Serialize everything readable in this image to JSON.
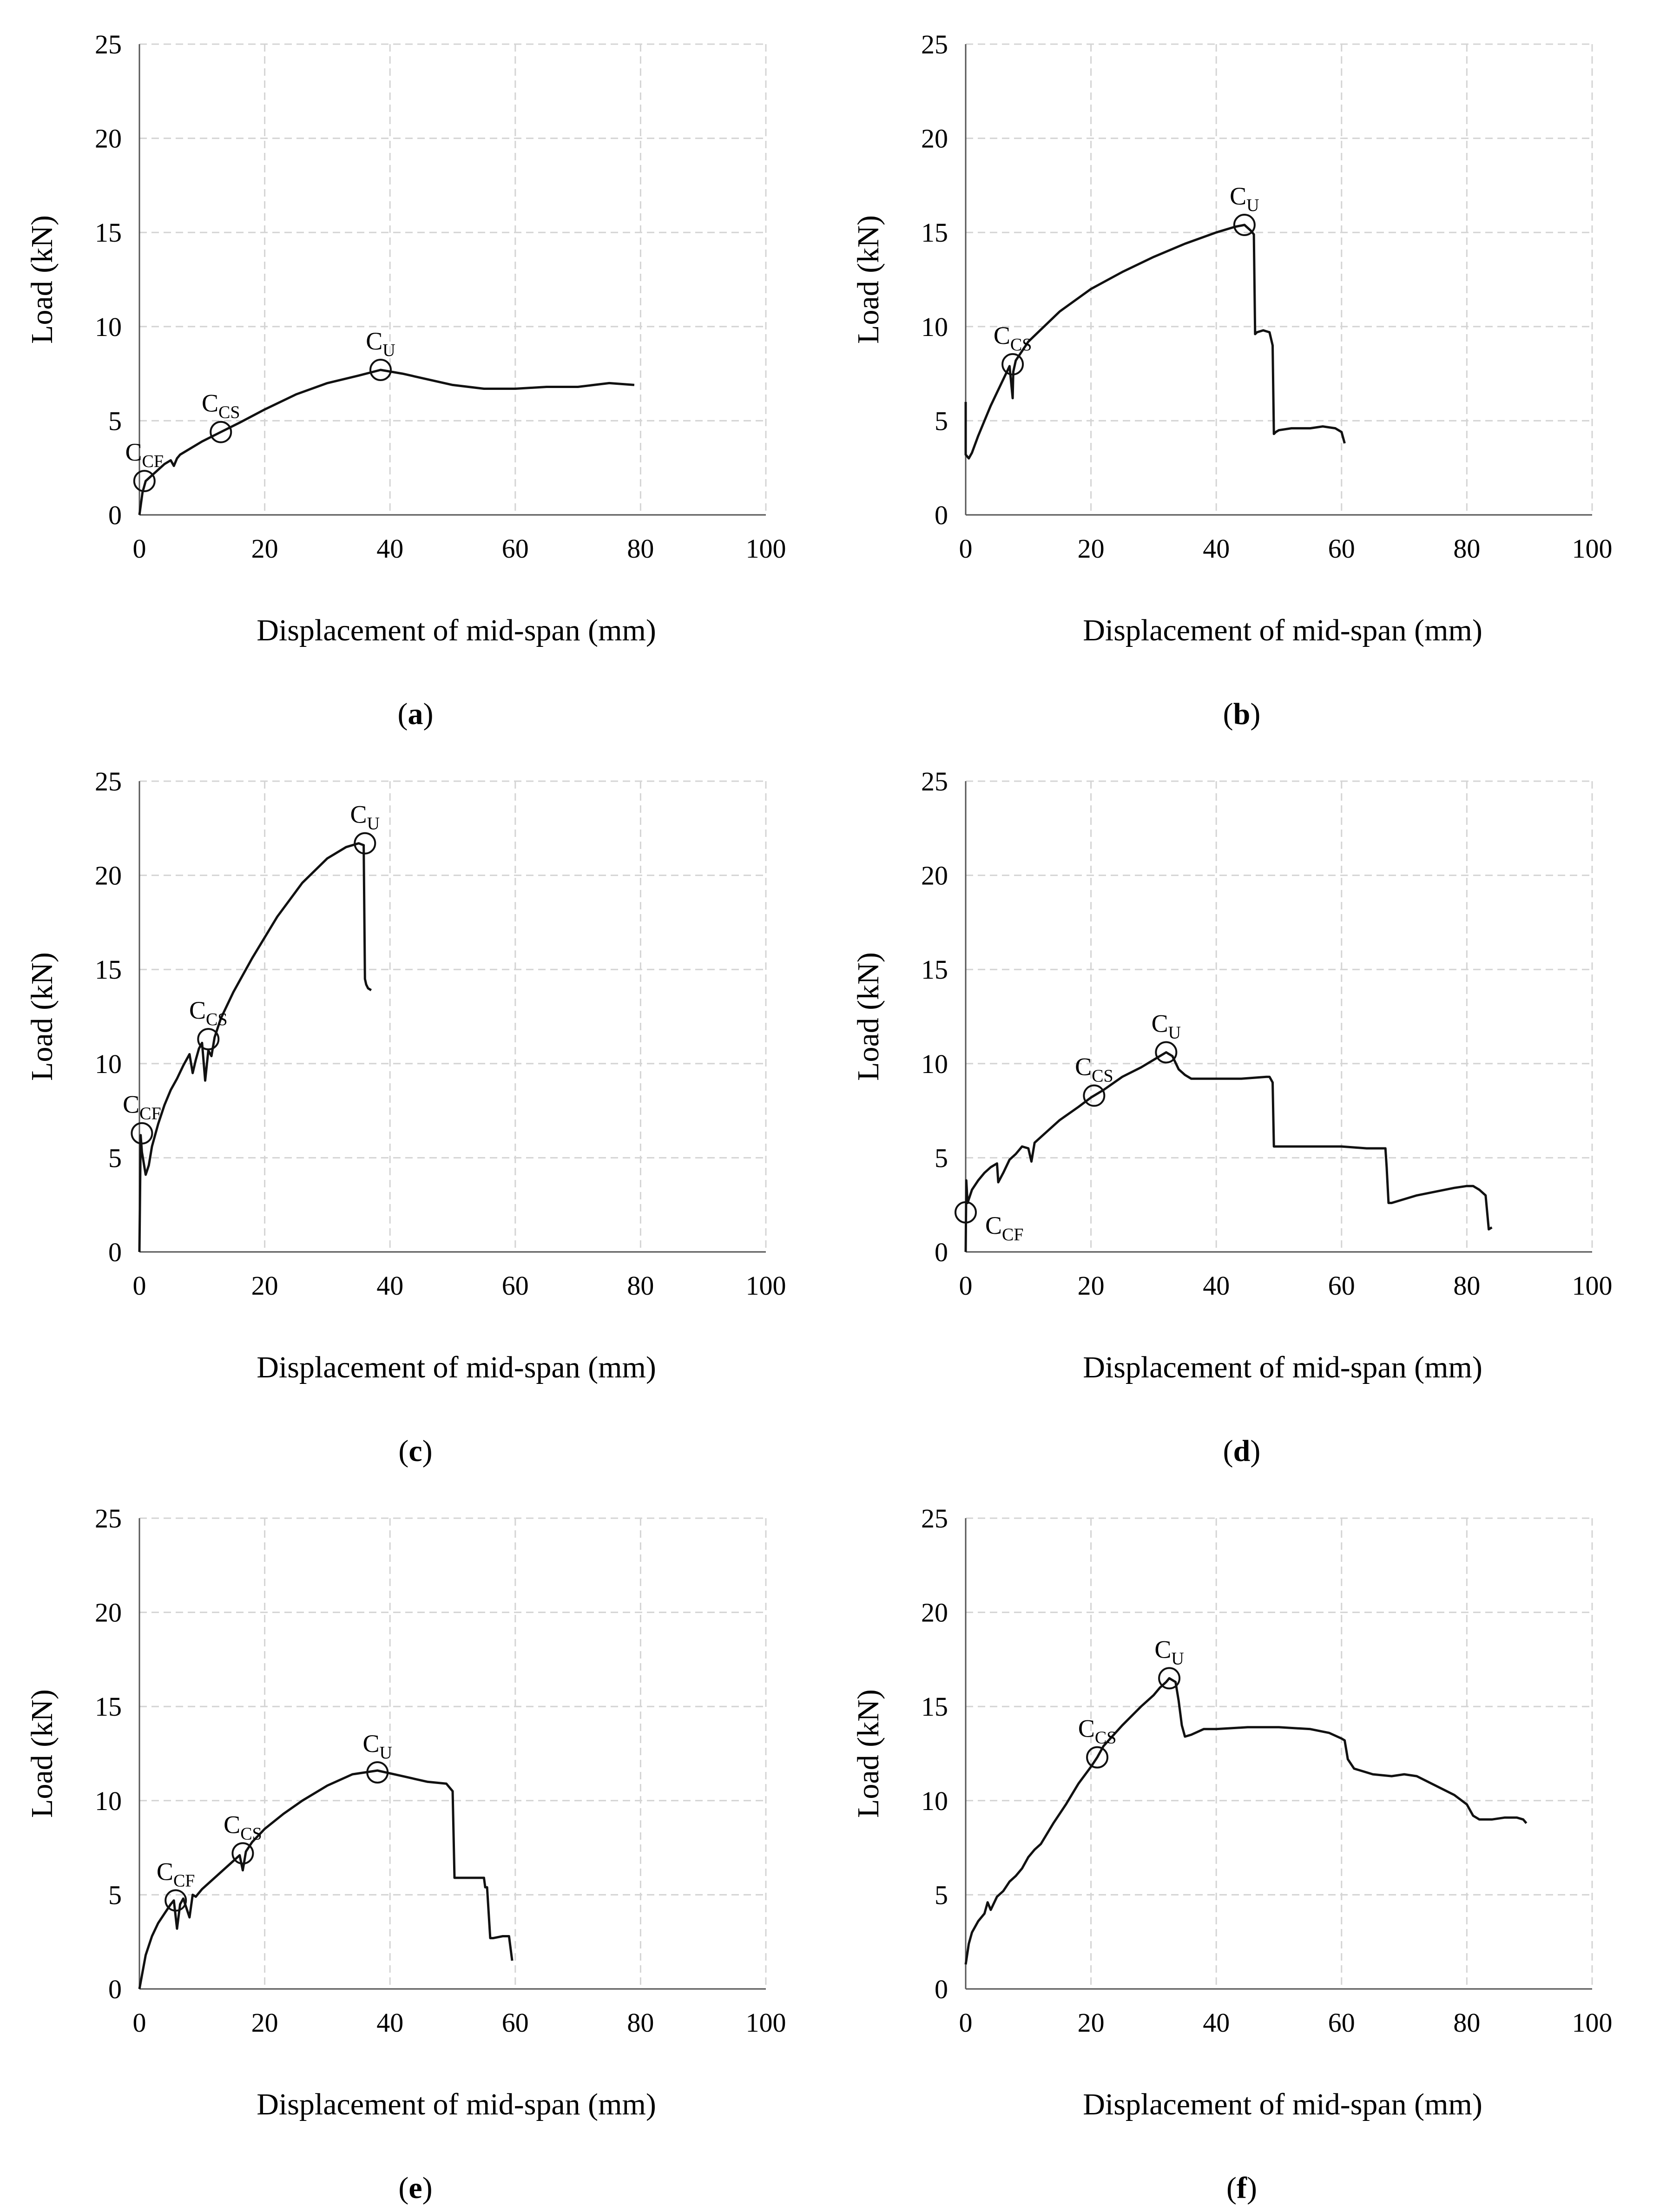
{
  "chart_data": [
    {
      "type": "line",
      "panel_label": "a",
      "xlabel": "Displacement of mid-span (mm)",
      "ylabel": "Load (kN)",
      "xlim": [
        0,
        100
      ],
      "ylim": [
        0,
        25
      ],
      "xticks": [
        0,
        20,
        40,
        60,
        80,
        100
      ],
      "yticks": [
        0,
        5,
        10,
        15,
        20,
        25
      ],
      "grid": true,
      "series": [
        {
          "name": "load-displacement",
          "x": [
            0,
            0.5,
            1,
            2,
            3,
            4,
            5,
            5.5,
            6,
            6.5,
            8,
            10,
            13,
            16,
            20,
            25,
            30,
            35,
            38.5,
            42,
            46,
            50,
            55,
            60,
            65,
            70,
            75,
            79
          ],
          "y": [
            0,
            1.2,
            1.8,
            2.1,
            2.4,
            2.7,
            2.9,
            2.6,
            3.0,
            3.2,
            3.5,
            3.9,
            4.4,
            4.9,
            5.6,
            6.4,
            7.0,
            7.4,
            7.7,
            7.5,
            7.2,
            6.9,
            6.7,
            6.7,
            6.8,
            6.8,
            7.0,
            6.9
          ]
        }
      ],
      "annotations": [
        {
          "label": "C",
          "sub": "CF",
          "x": 0.8,
          "y": 1.8
        },
        {
          "label": "C",
          "sub": "CS",
          "x": 13,
          "y": 4.4
        },
        {
          "label": "C",
          "sub": "U",
          "x": 38.5,
          "y": 7.7
        }
      ]
    },
    {
      "type": "line",
      "panel_label": "b",
      "xlabel": "Displacement of mid-span (mm)",
      "ylabel": "Load (kN)",
      "xlim": [
        0,
        100
      ],
      "ylim": [
        0,
        25
      ],
      "xticks": [
        0,
        20,
        40,
        60,
        80,
        100
      ],
      "yticks": [
        0,
        5,
        10,
        15,
        20,
        25
      ],
      "grid": true,
      "series": [
        {
          "name": "load-displacement",
          "x": [
            0,
            0,
            0.5,
            1,
            2,
            3,
            4,
            5,
            6,
            7,
            7.5,
            7.6,
            8,
            10,
            15,
            20,
            25,
            30,
            35,
            40,
            43,
            44.5,
            45.5,
            46,
            46.2,
            46.5,
            47.5,
            48.5,
            49,
            49.2,
            49.5,
            50,
            52,
            55,
            57,
            59,
            60,
            60.5
          ],
          "y": [
            6,
            3.2,
            3.0,
            3.3,
            4.2,
            5.0,
            5.8,
            6.5,
            7.2,
            7.9,
            6.2,
            7.6,
            8.2,
            9.2,
            10.8,
            12.0,
            12.9,
            13.7,
            14.4,
            15.0,
            15.3,
            15.4,
            15.1,
            14.9,
            9.6,
            9.7,
            9.8,
            9.7,
            9.0,
            4.3,
            4.4,
            4.5,
            4.6,
            4.6,
            4.7,
            4.6,
            4.4,
            3.8
          ]
        }
      ],
      "annotations": [
        {
          "label": "C",
          "sub": "CS",
          "x": 7.5,
          "y": 8.0
        },
        {
          "label": "C",
          "sub": "U",
          "x": 44.5,
          "y": 15.4
        }
      ]
    },
    {
      "type": "line",
      "panel_label": "c",
      "xlabel": "Displacement of mid-span (mm)",
      "ylabel": "Load (kN)",
      "xlim": [
        0,
        100
      ],
      "ylim": [
        0,
        25
      ],
      "xticks": [
        0,
        20,
        40,
        60,
        80,
        100
      ],
      "yticks": [
        0,
        5,
        10,
        15,
        20,
        25
      ],
      "grid": true,
      "series": [
        {
          "name": "load-displacement",
          "x": [
            0,
            0.2,
            0.4,
            1,
            1.5,
            2,
            3,
            4,
            5,
            6,
            7,
            8,
            8.5,
            9,
            9.5,
            10,
            10.5,
            11,
            11.5,
            12,
            13,
            15,
            18,
            22,
            26,
            30,
            33,
            35,
            35.8,
            36,
            36.2,
            36.5,
            37
          ],
          "y": [
            0,
            6.2,
            5.3,
            4.1,
            4.6,
            5.6,
            6.8,
            7.8,
            8.6,
            9.2,
            9.9,
            10.5,
            9.5,
            10.2,
            10.8,
            11.1,
            9.1,
            10.7,
            10.4,
            11.4,
            12.4,
            13.8,
            15.6,
            17.8,
            19.6,
            20.9,
            21.5,
            21.7,
            21.6,
            14.5,
            14.2,
            14.0,
            13.9
          ]
        }
      ],
      "annotations": [
        {
          "label": "C",
          "sub": "CF",
          "x": 0.4,
          "y": 6.3
        },
        {
          "label": "C",
          "sub": "CS",
          "x": 11,
          "y": 11.3
        },
        {
          "label": "C",
          "sub": "U",
          "x": 36,
          "y": 21.7
        }
      ]
    },
    {
      "type": "line",
      "panel_label": "d",
      "xlabel": "Displacement of mid-span (mm)",
      "ylabel": "Load (kN)",
      "xlim": [
        0,
        100
      ],
      "ylim": [
        0,
        25
      ],
      "xticks": [
        0,
        20,
        40,
        60,
        80,
        100
      ],
      "yticks": [
        0,
        5,
        10,
        15,
        20,
        25
      ],
      "grid": true,
      "series": [
        {
          "name": "load-displacement",
          "x": [
            0,
            0.1,
            0.3,
            1,
            2,
            3,
            4,
            5,
            5.2,
            6,
            7,
            8,
            9,
            10,
            10.5,
            11,
            13,
            15,
            18,
            20,
            22,
            25,
            28,
            30,
            32,
            33,
            34,
            35,
            36,
            38,
            40,
            44,
            48,
            48.5,
            49,
            49.2,
            52,
            56,
            60,
            64,
            67,
            67.2,
            67.5,
            68,
            70,
            72,
            75,
            78,
            80,
            81,
            82,
            83,
            83.5,
            84
          ],
          "y": [
            0,
            3.8,
            2.6,
            3.3,
            3.8,
            4.2,
            4.5,
            4.7,
            3.7,
            4.2,
            4.9,
            5.2,
            5.6,
            5.5,
            4.8,
            5.8,
            6.4,
            7.0,
            7.7,
            8.2,
            8.6,
            9.3,
            9.8,
            10.2,
            10.6,
            10.4,
            9.7,
            9.4,
            9.2,
            9.2,
            9.2,
            9.2,
            9.3,
            9.3,
            9.0,
            5.6,
            5.6,
            5.6,
            5.6,
            5.5,
            5.5,
            4.5,
            2.6,
            2.6,
            2.8,
            3.0,
            3.2,
            3.4,
            3.5,
            3.5,
            3.3,
            3.0,
            1.2,
            1.3
          ]
        }
      ],
      "annotations": [
        {
          "label": "C",
          "sub": "CF",
          "x": 0,
          "y": 2.1,
          "label_pos": "right"
        },
        {
          "label": "C",
          "sub": "CS",
          "x": 20.5,
          "y": 8.3
        },
        {
          "label": "C",
          "sub": "U",
          "x": 32,
          "y": 10.6
        }
      ]
    },
    {
      "type": "line",
      "panel_label": "e",
      "xlabel": "Displacement of mid-span (mm)",
      "ylabel": "Load (kN)",
      "xlim": [
        0,
        100
      ],
      "ylim": [
        0,
        25
      ],
      "xticks": [
        0,
        20,
        40,
        60,
        80,
        100
      ],
      "yticks": [
        0,
        5,
        10,
        15,
        20,
        25
      ],
      "grid": true,
      "series": [
        {
          "name": "load-displacement",
          "x": [
            0,
            1,
            2,
            3,
            4,
            5,
            5.5,
            6,
            6.5,
            7,
            8,
            8.5,
            9,
            10,
            12,
            14,
            16,
            16.5,
            17,
            18,
            20,
            23,
            26,
            30,
            34,
            38,
            42,
            46,
            49,
            50,
            50.3,
            52,
            54,
            55,
            55.2,
            55.5,
            56,
            56.5,
            58,
            59,
            59.5
          ],
          "y": [
            0,
            1.8,
            2.8,
            3.5,
            4.0,
            4.5,
            4.7,
            3.2,
            4.5,
            4.8,
            3.8,
            5.0,
            4.9,
            5.3,
            5.9,
            6.5,
            7.1,
            6.3,
            7.3,
            7.8,
            8.5,
            9.3,
            10.0,
            10.8,
            11.4,
            11.6,
            11.3,
            11.0,
            10.9,
            10.5,
            5.9,
            5.9,
            5.9,
            5.9,
            5.4,
            5.4,
            2.7,
            2.7,
            2.8,
            2.8,
            1.5
          ]
        }
      ],
      "annotations": [
        {
          "label": "C",
          "sub": "CF",
          "x": 5.8,
          "y": 4.7
        },
        {
          "label": "C",
          "sub": "CS",
          "x": 16.5,
          "y": 7.2
        },
        {
          "label": "C",
          "sub": "U",
          "x": 38,
          "y": 11.5
        }
      ]
    },
    {
      "type": "line",
      "panel_label": "f",
      "xlabel": "Displacement of mid-span (mm)",
      "ylabel": "Load (kN)",
      "xlim": [
        0,
        100
      ],
      "ylim": [
        0,
        25
      ],
      "xticks": [
        0,
        20,
        40,
        60,
        80,
        100
      ],
      "yticks": [
        0,
        5,
        10,
        15,
        20,
        25
      ],
      "grid": true,
      "series": [
        {
          "name": "load-displacement",
          "x": [
            0,
            0.5,
            1,
            2,
            3,
            3.5,
            4,
            5,
            6,
            7,
            8,
            9,
            10,
            11,
            12,
            14,
            16,
            18,
            20,
            21,
            22,
            25,
            28,
            30,
            31,
            32,
            32.5,
            33.5,
            34,
            34.5,
            35,
            36,
            38,
            40,
            45,
            50,
            55,
            58,
            60,
            60.5,
            61,
            62,
            65,
            68,
            70,
            72,
            75,
            78,
            80,
            81,
            82,
            84,
            86,
            88,
            89,
            89.5
          ],
          "y": [
            1.3,
            2.4,
            3.0,
            3.6,
            4.0,
            4.6,
            4.2,
            4.9,
            5.2,
            5.7,
            6.0,
            6.4,
            7.0,
            7.4,
            7.7,
            8.8,
            9.8,
            10.9,
            11.8,
            12.3,
            12.9,
            14.0,
            15.0,
            15.6,
            16.0,
            16.3,
            16.5,
            16.3,
            15.3,
            14.0,
            13.4,
            13.5,
            13.8,
            13.8,
            13.9,
            13.9,
            13.8,
            13.6,
            13.3,
            13.2,
            12.2,
            11.7,
            11.4,
            11.3,
            11.4,
            11.3,
            10.8,
            10.3,
            9.8,
            9.2,
            9.0,
            9.0,
            9.1,
            9.1,
            9.0,
            8.8
          ]
        }
      ],
      "annotations": [
        {
          "label": "C",
          "sub": "CS",
          "x": 21,
          "y": 12.3
        },
        {
          "label": "C",
          "sub": "U",
          "x": 32.5,
          "y": 16.5
        }
      ]
    }
  ]
}
